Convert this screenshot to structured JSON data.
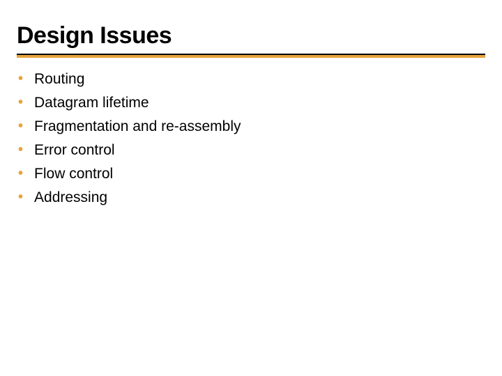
{
  "slide": {
    "title": "Design Issues",
    "title_color": "#000000",
    "title_fontsize": 34,
    "rule_top_color": "#000000",
    "rule_bottom_color": "#e8a33d",
    "bullet_color": "#e8a33d",
    "body_text_color": "#000000",
    "body_fontsize": 21,
    "background_color": "#ffffff",
    "items": [
      "Routing",
      "Datagram lifetime",
      "Fragmentation and re-assembly",
      "Error control",
      "Flow control",
      "Addressing"
    ]
  }
}
